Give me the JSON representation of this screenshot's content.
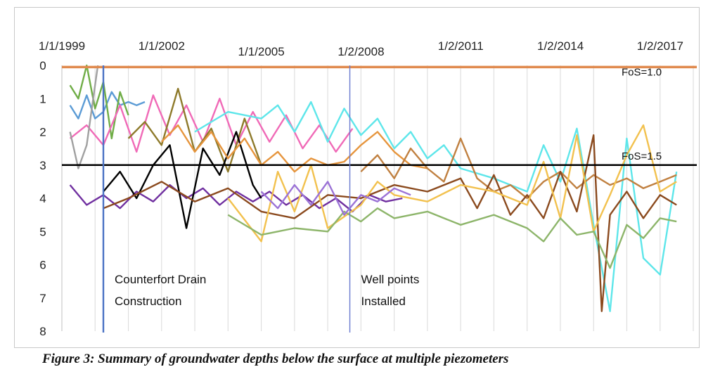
{
  "chart_data": {
    "type": "line",
    "title": "",
    "xlabel": "",
    "ylabel": "",
    "x_ticks": [
      "1/1/1999",
      "1/1/2002",
      "1/1/2005",
      "1/2/2008",
      "1/2/2011",
      "1/2/2014",
      "1/2/2017"
    ],
    "y_ticks": [
      "0",
      "1",
      "2",
      "3",
      "4",
      "5",
      "6",
      "7",
      "8"
    ],
    "xlim": [
      "1999-01-01",
      "2018-01-01"
    ],
    "ylim": [
      0,
      8
    ],
    "y_inverted": true,
    "grid": {
      "x": true,
      "y": false
    },
    "reference_lines": [
      {
        "label": "FoS=1.0",
        "value": 0.05,
        "color": "#e08a4e"
      },
      {
        "label": "FoS=1.5",
        "value": 3.0,
        "color": "#000000"
      }
    ],
    "events": [
      {
        "date": "2000-04-01",
        "label_lines": [
          "Counterfort Drain",
          "Construction"
        ]
      },
      {
        "date": "2007-09-01",
        "label_lines": [
          "Well points",
          "Installed"
        ]
      }
    ],
    "series": [
      {
        "color": "#5b9bd5",
        "x": [
          "1999-04-01",
          "1999-07-01",
          "1999-10-01",
          "2000-01-01",
          "2000-04-01",
          "2000-07-01",
          "2000-10-01",
          "2001-01-01",
          "2001-04-01",
          "2001-07-01"
        ],
        "y": [
          1.2,
          1.6,
          0.9,
          1.6,
          1.4,
          0.8,
          1.2,
          1.1,
          1.2,
          1.1
        ]
      },
      {
        "color": "#70ad47",
        "x": [
          "1999-04-01",
          "1999-07-01",
          "1999-10-01",
          "2000-01-01",
          "2000-04-01",
          "2000-07-01",
          "2000-10-01",
          "2001-01-01"
        ],
        "y": [
          0.6,
          1.0,
          0.0,
          1.3,
          0.5,
          2.2,
          0.8,
          1.5
        ]
      },
      {
        "color": "#f06ab7",
        "x": [
          "1999-04-01",
          "1999-10-01",
          "2000-04-01",
          "2000-10-01",
          "2001-04-01",
          "2001-10-01",
          "2002-04-01",
          "2002-10-01",
          "2003-04-01",
          "2003-10-01",
          "2004-04-01",
          "2004-10-01",
          "2005-04-01",
          "2005-10-01",
          "2006-04-01",
          "2006-10-01",
          "2007-04-01",
          "2007-10-01"
        ],
        "y": [
          2.2,
          1.8,
          2.4,
          1.2,
          2.6,
          0.9,
          2.1,
          1.2,
          2.3,
          1.0,
          2.4,
          1.4,
          2.3,
          1.5,
          2.5,
          1.8,
          2.6,
          1.9
        ]
      },
      {
        "color": "#8e7a2b",
        "x": [
          "2001-01-01",
          "2001-07-01",
          "2002-01-01",
          "2002-07-01",
          "2003-01-01",
          "2003-07-01",
          "2004-01-01",
          "2004-07-01",
          "2005-01-01"
        ],
        "y": [
          2.2,
          1.7,
          2.4,
          0.7,
          2.6,
          1.9,
          3.2,
          1.6,
          3.0
        ]
      },
      {
        "color": "#7030a0",
        "x": [
          "1999-04-01",
          "1999-10-01",
          "2000-04-01",
          "2000-10-01",
          "2001-04-01",
          "2001-10-01",
          "2002-04-01",
          "2002-10-01",
          "2003-04-01",
          "2003-10-01",
          "2004-04-01",
          "2004-10-01",
          "2005-04-01",
          "2005-10-01",
          "2006-04-01",
          "2006-10-01",
          "2007-04-01",
          "2007-10-01",
          "2008-04-01",
          "2008-10-01",
          "2009-04-01"
        ],
        "y": [
          3.6,
          4.2,
          3.9,
          4.3,
          3.8,
          4.1,
          3.6,
          4.0,
          3.7,
          4.2,
          3.8,
          4.1,
          3.8,
          4.2,
          3.9,
          4.3,
          4.0,
          4.4,
          3.9,
          4.1,
          4.0
        ]
      },
      {
        "color": "#000000",
        "x": [
          "2000-04-01",
          "2000-10-01",
          "2001-04-01",
          "2001-10-01",
          "2002-04-01",
          "2002-10-01",
          "2003-04-01",
          "2003-10-01",
          "2004-04-01",
          "2004-10-01",
          "2005-01-01"
        ],
        "y": [
          3.8,
          3.2,
          4.0,
          3.0,
          2.4,
          4.9,
          2.5,
          3.3,
          2.0,
          3.6,
          4.0
        ]
      },
      {
        "color": "#e6953d",
        "x": [
          "2002-01-01",
          "2002-07-01",
          "2003-01-01",
          "2003-07-01",
          "2004-01-01",
          "2004-07-01",
          "2005-01-01",
          "2005-07-01",
          "2006-01-01",
          "2006-07-01",
          "2007-01-01",
          "2007-07-01",
          "2008-01-01",
          "2008-07-01",
          "2009-01-01",
          "2009-07-01",
          "2010-01-01"
        ],
        "y": [
          2.3,
          1.8,
          2.6,
          2.0,
          2.8,
          2.2,
          3.0,
          2.6,
          3.2,
          2.8,
          3.0,
          2.9,
          2.4,
          2.0,
          2.6,
          3.0,
          3.1
        ]
      },
      {
        "color": "#5ee6ea",
        "x": [
          "2003-01-01",
          "2004-01-01",
          "2005-01-01",
          "2005-07-01",
          "2006-01-01",
          "2006-07-01",
          "2007-01-01",
          "2007-07-01",
          "2008-01-01",
          "2008-07-01",
          "2009-01-01",
          "2009-07-01",
          "2010-01-01",
          "2010-07-01",
          "2011-01-01",
          "2012-01-01",
          "2013-01-01",
          "2013-07-01",
          "2014-01-01",
          "2014-07-01",
          "2015-01-01",
          "2015-07-01",
          "2016-01-01",
          "2016-07-01",
          "2017-01-01",
          "2017-07-01"
        ],
        "y": [
          2.0,
          1.4,
          1.6,
          1.2,
          2.0,
          1.1,
          2.3,
          1.3,
          2.1,
          1.6,
          2.5,
          2.0,
          2.8,
          2.4,
          3.1,
          3.4,
          3.8,
          2.4,
          3.5,
          1.9,
          4.8,
          7.4,
          2.2,
          5.8,
          6.3,
          3.2
        ]
      },
      {
        "color": "#c08040",
        "x": [
          "2008-01-01",
          "2008-07-01",
          "2009-01-01",
          "2009-07-01",
          "2010-01-01",
          "2010-07-01",
          "2011-01-01",
          "2011-07-01",
          "2012-01-01",
          "2012-07-01",
          "2013-01-01",
          "2013-07-01",
          "2014-01-01",
          "2014-07-01",
          "2015-01-01",
          "2015-07-01",
          "2016-01-01",
          "2016-07-01",
          "2017-01-01",
          "2017-07-01"
        ],
        "y": [
          3.2,
          2.7,
          3.4,
          2.5,
          3.1,
          3.5,
          2.2,
          3.4,
          3.8,
          3.6,
          4.0,
          3.5,
          3.2,
          3.7,
          3.3,
          3.6,
          3.4,
          3.7,
          3.5,
          3.3
        ]
      },
      {
        "color": "#8b4a1e",
        "x": [
          "2000-04-01",
          "2001-01-01",
          "2002-01-01",
          "2003-01-01",
          "2004-01-01",
          "2005-01-01",
          "2006-01-01",
          "2007-01-01",
          "2008-01-01",
          "2009-01-01",
          "2010-01-01",
          "2011-01-01",
          "2011-07-01",
          "2012-01-01",
          "2012-07-01",
          "2013-01-01",
          "2013-07-01",
          "2014-01-01",
          "2014-07-01",
          "2015-01-01",
          "2015-04-01",
          "2015-07-01",
          "2016-01-01",
          "2016-07-01",
          "2017-01-01",
          "2017-07-01"
        ],
        "y": [
          4.3,
          4.0,
          3.5,
          4.1,
          3.7,
          4.4,
          4.6,
          3.9,
          4.0,
          3.6,
          3.8,
          3.4,
          4.3,
          3.3,
          4.5,
          3.9,
          4.6,
          3.2,
          4.4,
          2.1,
          7.4,
          4.5,
          3.8,
          4.6,
          3.9,
          4.2
        ]
      },
      {
        "color": "#f2c14e",
        "x": [
          "2004-01-01",
          "2005-01-01",
          "2005-07-01",
          "2006-01-01",
          "2006-07-01",
          "2007-01-01",
          "2008-01-01",
          "2008-07-01",
          "2009-01-01",
          "2010-01-01",
          "2011-01-01",
          "2012-01-01",
          "2013-01-01",
          "2013-07-01",
          "2014-01-01",
          "2014-07-01",
          "2015-01-01",
          "2015-07-01",
          "2016-01-01",
          "2016-07-01",
          "2017-01-01",
          "2017-07-01"
        ],
        "y": [
          4.0,
          5.3,
          3.2,
          4.4,
          3.0,
          4.9,
          4.2,
          3.5,
          3.9,
          4.1,
          3.6,
          3.8,
          4.2,
          2.9,
          4.6,
          2.1,
          5.0,
          3.9,
          2.7,
          1.8,
          3.8,
          3.5
        ]
      },
      {
        "color": "#8db56a",
        "x": [
          "2004-01-01",
          "2005-01-01",
          "2006-01-01",
          "2007-01-01",
          "2007-07-01",
          "2008-01-01",
          "2008-07-01",
          "2009-01-01",
          "2010-01-01",
          "2011-01-01",
          "2012-01-01",
          "2013-01-01",
          "2013-07-01",
          "2014-01-01",
          "2014-07-01",
          "2015-01-01",
          "2015-07-01",
          "2016-01-01",
          "2016-07-01",
          "2017-01-01",
          "2017-07-01"
        ],
        "y": [
          4.5,
          5.1,
          4.9,
          5.0,
          4.4,
          4.7,
          4.3,
          4.6,
          4.4,
          4.8,
          4.5,
          4.9,
          5.3,
          4.6,
          5.1,
          5.0,
          6.1,
          4.8,
          5.2,
          4.6,
          4.7
        ]
      },
      {
        "color": "#9b72d6",
        "x": [
          "2005-01-01",
          "2005-07-01",
          "2006-01-01",
          "2006-07-01",
          "2007-01-01",
          "2007-07-01",
          "2008-01-01",
          "2008-07-01",
          "2009-01-01",
          "2009-07-01"
        ],
        "y": [
          3.8,
          4.3,
          3.6,
          4.2,
          3.5,
          4.5,
          3.9,
          4.1,
          3.7,
          3.9
        ]
      },
      {
        "color": "#a0a0a0",
        "x": [
          "1999-04-01",
          "1999-07-01",
          "1999-10-01",
          "2000-01-01",
          "2000-02-01"
        ],
        "y": [
          2.0,
          3.1,
          2.4,
          0.6,
          0.0
        ]
      }
    ]
  },
  "caption": "Figure 3: Summary of groundwater depths below the surface at multiple piezometers"
}
